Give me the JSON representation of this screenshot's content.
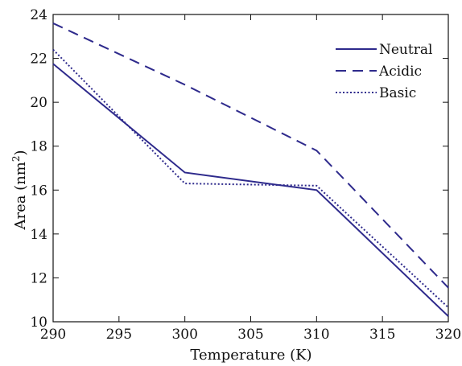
{
  "chart_data": {
    "type": "line",
    "title": "",
    "xlabel": "Temperature (K)",
    "ylabel": "Area (nm",
    "ylabel_sup": "2",
    "ylabel_suffix": ")",
    "x": [
      290,
      300,
      310,
      320
    ],
    "xlim": [
      290,
      320
    ],
    "ylim": [
      10,
      24
    ],
    "xticks": [
      290,
      295,
      300,
      305,
      310,
      315,
      320
    ],
    "yticks": [
      10,
      12,
      14,
      16,
      18,
      20,
      22,
      24
    ],
    "grid": false,
    "legend_position": "top-right",
    "line_color": "#2e2a8c",
    "series": [
      {
        "name": "Neutral",
        "style": "solid",
        "values": [
          21.75,
          16.8,
          16.0,
          10.25
        ]
      },
      {
        "name": "Acidic",
        "style": "dashed",
        "values": [
          23.6,
          20.8,
          17.8,
          11.55
        ]
      },
      {
        "name": "Basic",
        "style": "dotted",
        "values": [
          22.4,
          16.3,
          16.2,
          10.65
        ]
      }
    ]
  }
}
